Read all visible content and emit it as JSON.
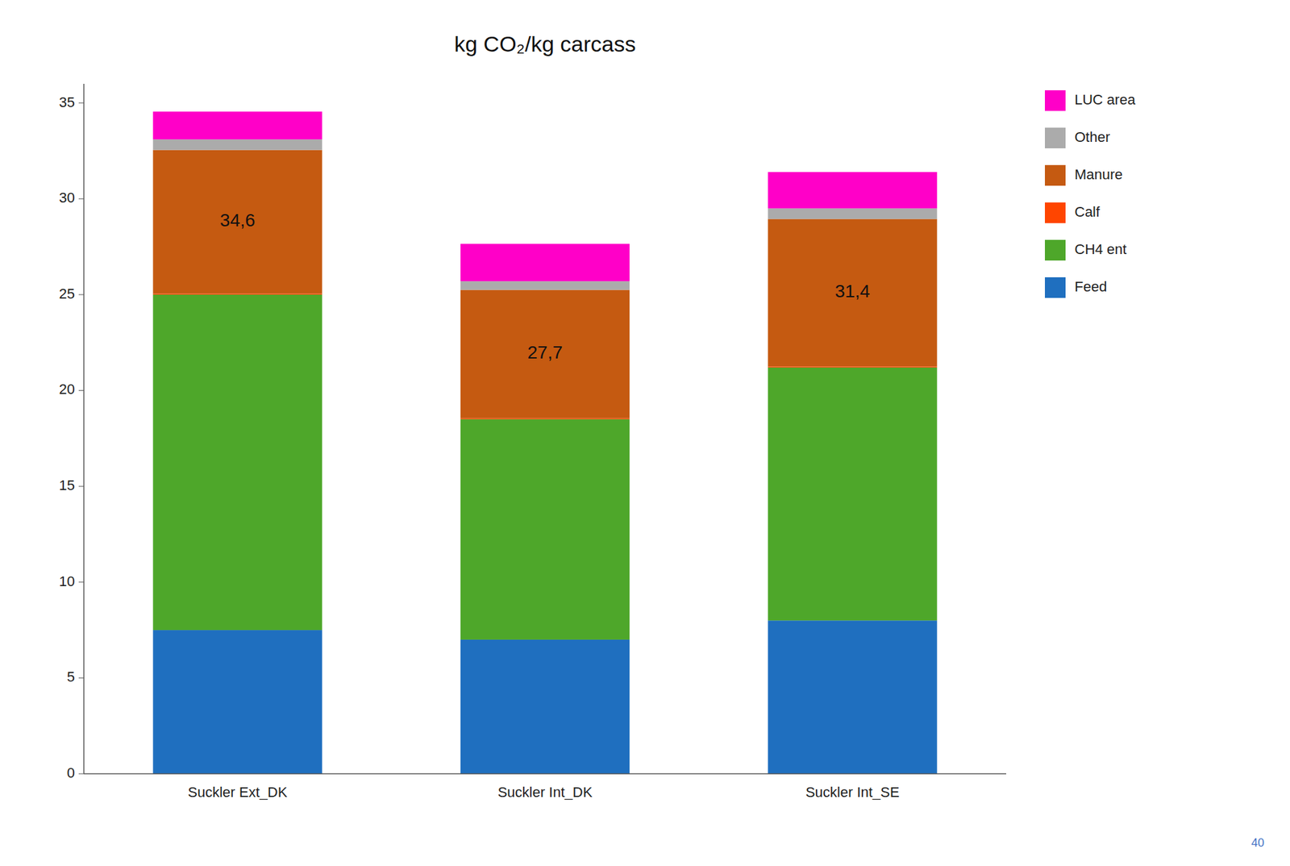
{
  "chart_data": {
    "type": "bar",
    "stacked": true,
    "title": "kg CO₂/kg carcass",
    "categories": [
      "Suckler Ext_DK",
      "Suckler Int_DK",
      "Suckler Int_SE"
    ],
    "series": [
      {
        "name": "Feed",
        "color": "#1F6FBF",
        "values": [
          7.5,
          7.0,
          8.0
        ]
      },
      {
        "name": "CH4 ent",
        "color": "#4EA72A",
        "values": [
          17.5,
          11.5,
          13.2
        ]
      },
      {
        "name": "Calf",
        "color": "#FF4500",
        "values": [
          0.05,
          0.05,
          0.05
        ]
      },
      {
        "name": "Manure",
        "color": "#C55A11",
        "values": [
          7.5,
          6.7,
          7.7
        ]
      },
      {
        "name": "Other",
        "color": "#ABABAB",
        "values": [
          0.55,
          0.45,
          0.55
        ]
      },
      {
        "name": "LUC area",
        "color": "#FF00C8",
        "values": [
          1.45,
          1.95,
          1.9
        ]
      }
    ],
    "totals": {
      "values": [
        34.6,
        27.7,
        31.4
      ],
      "value_labels": [
        "34,6",
        "27,7",
        "31,4"
      ]
    },
    "ylim": [
      0,
      36
    ],
    "yticks": [
      0,
      5,
      10,
      15,
      20,
      25,
      30,
      35
    ],
    "grid": false,
    "legend": "right",
    "footnote": "40"
  }
}
